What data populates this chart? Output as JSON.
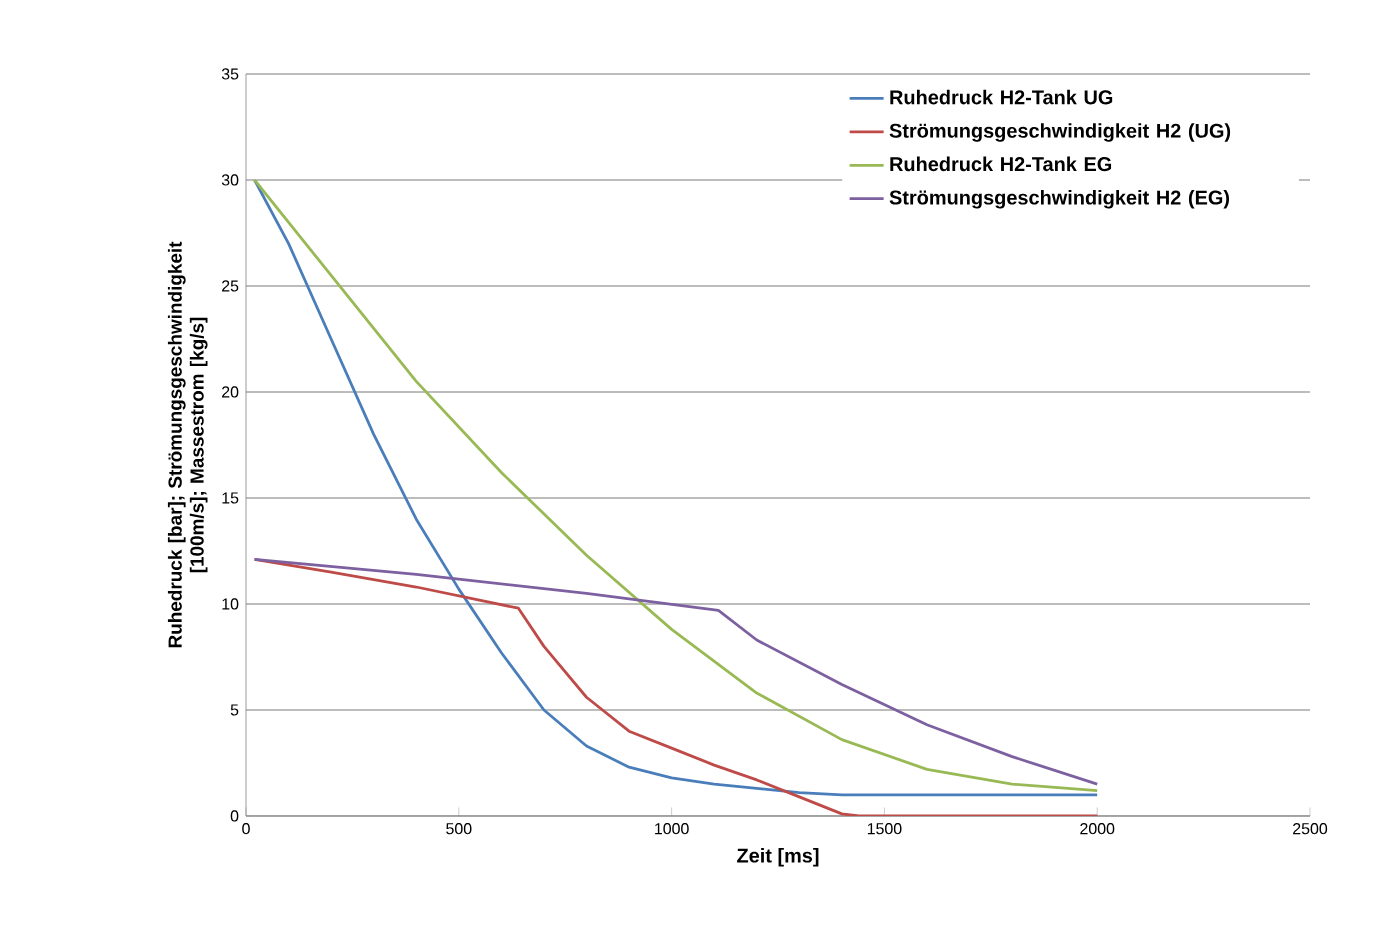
{
  "chart_data": {
    "type": "line",
    "xlabel": "Zeit [ms]",
    "ylabel": "Ruhedruck [bar]; Strömungsgeschwindigkeit [100m/s]; Massestrom [kg/s]",
    "xlim": [
      0,
      2500
    ],
    "xticks": [
      0,
      500,
      1000,
      1500,
      2000,
      2500
    ],
    "ylim": [
      0,
      35
    ],
    "yticks": [
      0,
      5,
      10,
      15,
      20,
      25,
      30,
      35
    ],
    "grid": "y",
    "legend": "top right",
    "marker": "none",
    "line_style": "solid",
    "series": [
      {
        "name": "Ruhedruck H2-Tank UG",
        "color": "#4a7ebb",
        "x": [
          20,
          100,
          200,
          300,
          400,
          500,
          600,
          700,
          800,
          900,
          1000,
          1100,
          1200,
          1300,
          1400,
          2000
        ],
        "values": [
          30,
          27,
          22.5,
          18,
          14,
          10.7,
          7.7,
          5,
          3.3,
          2.3,
          1.8,
          1.5,
          1.3,
          1.1,
          1.0,
          1.0
        ]
      },
      {
        "name": "Strömungsgeschwindigkeit H2 (UG)",
        "color": "#be4b48",
        "x": [
          20,
          200,
          400,
          640,
          700,
          800,
          900,
          1000,
          1100,
          1200,
          1300,
          1400,
          1440,
          2000
        ],
        "values": [
          12.1,
          11.5,
          10.8,
          9.8,
          8,
          5.6,
          4,
          3.2,
          2.4,
          1.7,
          0.9,
          0.1,
          0,
          0
        ]
      },
      {
        "name": "Ruhedruck H2-Tank EG",
        "color": "#98b954",
        "x": [
          20,
          200,
          400,
          600,
          800,
          1000,
          1200,
          1400,
          1600,
          1800,
          2000
        ],
        "values": [
          30,
          25.5,
          20.5,
          16.2,
          12.3,
          8.8,
          5.8,
          3.6,
          2.2,
          1.5,
          1.2
        ]
      },
      {
        "name": "Strömungsgeschwindigkeit H2 (EG)",
        "color": "#7d60a0",
        "x": [
          20,
          400,
          800,
          1110,
          1200,
          1400,
          1600,
          1800,
          2000
        ],
        "values": [
          12.1,
          11.4,
          10.5,
          9.7,
          8.3,
          6.2,
          4.3,
          2.8,
          1.5
        ]
      }
    ]
  }
}
